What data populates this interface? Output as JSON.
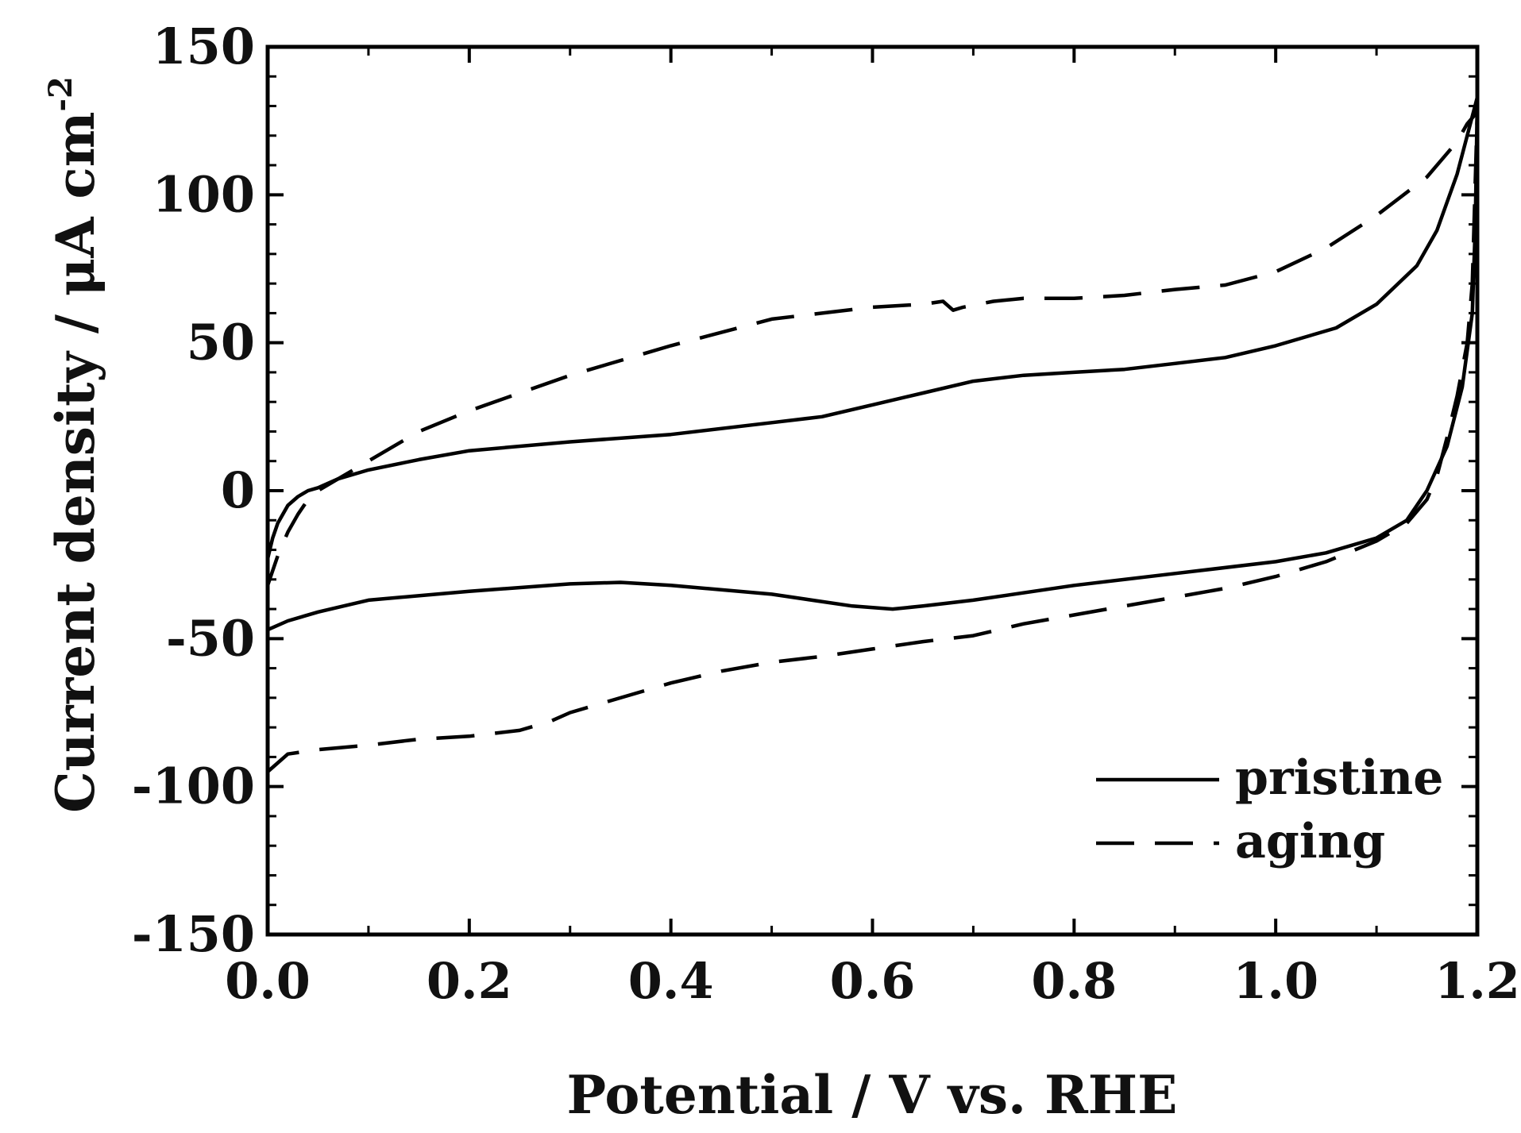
{
  "chart_data": {
    "type": "line",
    "title": "",
    "xlabel": "Potential / V vs. RHE",
    "ylabel_main": "Current density / μA cm",
    "ylabel_superscript": "-2",
    "xlim": [
      0.0,
      1.2
    ],
    "ylim": [
      -150,
      150
    ],
    "x_ticks": [
      0.0,
      0.2,
      0.4,
      0.6,
      0.8,
      1.0,
      1.2
    ],
    "x_tick_labels": [
      "0.0",
      "0.2",
      "0.4",
      "0.6",
      "0.8",
      "1.0",
      "1.2"
    ],
    "y_ticks": [
      -150,
      -100,
      -50,
      0,
      50,
      100,
      150
    ],
    "y_tick_labels": [
      "-150",
      "-100",
      "-50",
      "0",
      "50",
      "100",
      "150"
    ],
    "grid": false,
    "legend_position": "bottom-right",
    "series": [
      {
        "name": "pristine",
        "style": "solid",
        "color": "#000000",
        "points": [
          [
            0.0,
            -47
          ],
          [
            0.02,
            -44
          ],
          [
            0.05,
            -41
          ],
          [
            0.1,
            -37
          ],
          [
            0.2,
            -34
          ],
          [
            0.3,
            -31.5
          ],
          [
            0.35,
            -31
          ],
          [
            0.4,
            -32
          ],
          [
            0.5,
            -35
          ],
          [
            0.58,
            -39
          ],
          [
            0.62,
            -40
          ],
          [
            0.65,
            -39
          ],
          [
            0.7,
            -37
          ],
          [
            0.8,
            -32
          ],
          [
            0.9,
            -28
          ],
          [
            1.0,
            -24
          ],
          [
            1.05,
            -21
          ],
          [
            1.1,
            -16
          ],
          [
            1.13,
            -10
          ],
          [
            1.15,
            0
          ],
          [
            1.17,
            15
          ],
          [
            1.185,
            35
          ],
          [
            1.195,
            60
          ],
          [
            1.198,
            90
          ],
          [
            1.2,
            133
          ],
          [
            1.19,
            120
          ],
          [
            1.18,
            107
          ],
          [
            1.16,
            88
          ],
          [
            1.14,
            76
          ],
          [
            1.1,
            63
          ],
          [
            1.06,
            55
          ],
          [
            1.0,
            49
          ],
          [
            0.95,
            45
          ],
          [
            0.9,
            43
          ],
          [
            0.85,
            41
          ],
          [
            0.8,
            40
          ],
          [
            0.75,
            39
          ],
          [
            0.7,
            37
          ],
          [
            0.65,
            33
          ],
          [
            0.6,
            29
          ],
          [
            0.55,
            25
          ],
          [
            0.5,
            23
          ],
          [
            0.4,
            19
          ],
          [
            0.3,
            16.5
          ],
          [
            0.2,
            13.5
          ],
          [
            0.15,
            10.5
          ],
          [
            0.1,
            7
          ],
          [
            0.07,
            4
          ],
          [
            0.05,
            1
          ],
          [
            0.04,
            0
          ],
          [
            0.03,
            -2
          ],
          [
            0.02,
            -5
          ],
          [
            0.01,
            -11
          ],
          [
            0.005,
            -16
          ],
          [
            0.0,
            -23
          ]
        ]
      },
      {
        "name": "aging",
        "style": "dashed",
        "color": "#000000",
        "points": [
          [
            0.0,
            -95
          ],
          [
            0.02,
            -89
          ],
          [
            0.05,
            -87.5
          ],
          [
            0.1,
            -86
          ],
          [
            0.15,
            -84
          ],
          [
            0.2,
            -83
          ],
          [
            0.25,
            -81
          ],
          [
            0.28,
            -78
          ],
          [
            0.3,
            -75
          ],
          [
            0.35,
            -70
          ],
          [
            0.4,
            -65
          ],
          [
            0.45,
            -61
          ],
          [
            0.5,
            -58
          ],
          [
            0.55,
            -56
          ],
          [
            0.6,
            -53.5
          ],
          [
            0.65,
            -51
          ],
          [
            0.7,
            -49
          ],
          [
            0.75,
            -45
          ],
          [
            0.8,
            -42
          ],
          [
            0.85,
            -39
          ],
          [
            0.9,
            -36
          ],
          [
            0.95,
            -33
          ],
          [
            1.0,
            -29
          ],
          [
            1.05,
            -24
          ],
          [
            1.1,
            -17
          ],
          [
            1.13,
            -11
          ],
          [
            1.15,
            -3
          ],
          [
            1.16,
            5
          ],
          [
            1.17,
            18
          ],
          [
            1.18,
            32
          ],
          [
            1.19,
            50
          ],
          [
            1.195,
            70
          ],
          [
            1.2,
            128
          ],
          [
            1.19,
            124
          ],
          [
            1.18,
            118
          ],
          [
            1.15,
            106
          ],
          [
            1.1,
            93
          ],
          [
            1.05,
            82
          ],
          [
            1.0,
            74
          ],
          [
            0.95,
            69.5
          ],
          [
            0.9,
            68
          ],
          [
            0.85,
            66
          ],
          [
            0.8,
            65
          ],
          [
            0.75,
            65
          ],
          [
            0.72,
            64
          ],
          [
            0.69,
            62
          ],
          [
            0.68,
            61
          ],
          [
            0.67,
            64
          ],
          [
            0.65,
            63
          ],
          [
            0.6,
            62
          ],
          [
            0.5,
            58
          ],
          [
            0.4,
            49
          ],
          [
            0.3,
            39
          ],
          [
            0.2,
            27
          ],
          [
            0.15,
            20
          ],
          [
            0.1,
            10
          ],
          [
            0.07,
            4
          ],
          [
            0.05,
            0
          ],
          [
            0.04,
            -3
          ],
          [
            0.03,
            -8
          ],
          [
            0.02,
            -14
          ],
          [
            0.01,
            -22
          ],
          [
            0.0,
            -32
          ]
        ]
      }
    ]
  }
}
